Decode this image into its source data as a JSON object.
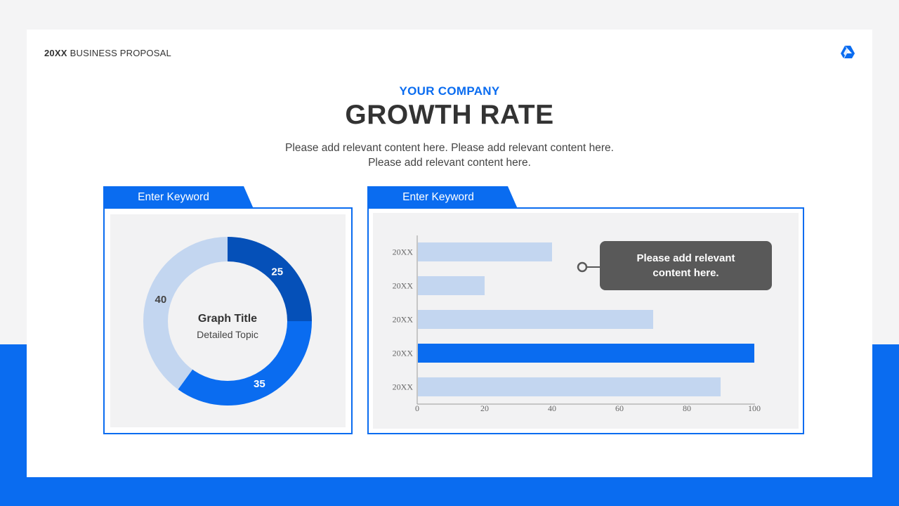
{
  "header": {
    "year": "20XX",
    "proposal": "BUSINESS PROPOSAL",
    "logo_icon": "drive-triangle-icon"
  },
  "hero": {
    "company": "YOUR COMPANY",
    "title": "GROWTH RATE",
    "subtitle_line1": "Please add relevant content here. Please add relevant content here.",
    "subtitle_line2": "Please add relevant content here."
  },
  "left_panel": {
    "tab_label": "Enter Keyword",
    "center_title": "Graph Title",
    "center_subtitle": "Detailed Topic"
  },
  "right_panel": {
    "tab_label": "Enter Keyword",
    "callout_text_line1": "Please add relevant",
    "callout_text_line2": "content here."
  },
  "colors": {
    "accent": "#0a6cf0",
    "dark_blue": "#0550b8",
    "light_blue": "#c3d6f0",
    "callout_bg": "#595959"
  },
  "chart_data": [
    {
      "type": "pie",
      "variant": "donut",
      "slices": [
        {
          "label": "25",
          "value": 25,
          "color": "#0550b8"
        },
        {
          "label": "35",
          "value": 35,
          "color": "#0a6cf0"
        },
        {
          "label": "40",
          "value": 40,
          "color": "#c3d6f0"
        }
      ],
      "title": "Graph Title",
      "subtitle": "Detailed Topic"
    },
    {
      "type": "bar",
      "orientation": "horizontal",
      "categories": [
        "20XX",
        "20XX",
        "20XX",
        "20XX",
        "20XX"
      ],
      "values": [
        40,
        20,
        70,
        100,
        90
      ],
      "highlight_index": 3,
      "xlim": [
        0,
        100
      ],
      "xticks": [
        0,
        20,
        40,
        60,
        80,
        100
      ],
      "grid": false
    }
  ]
}
